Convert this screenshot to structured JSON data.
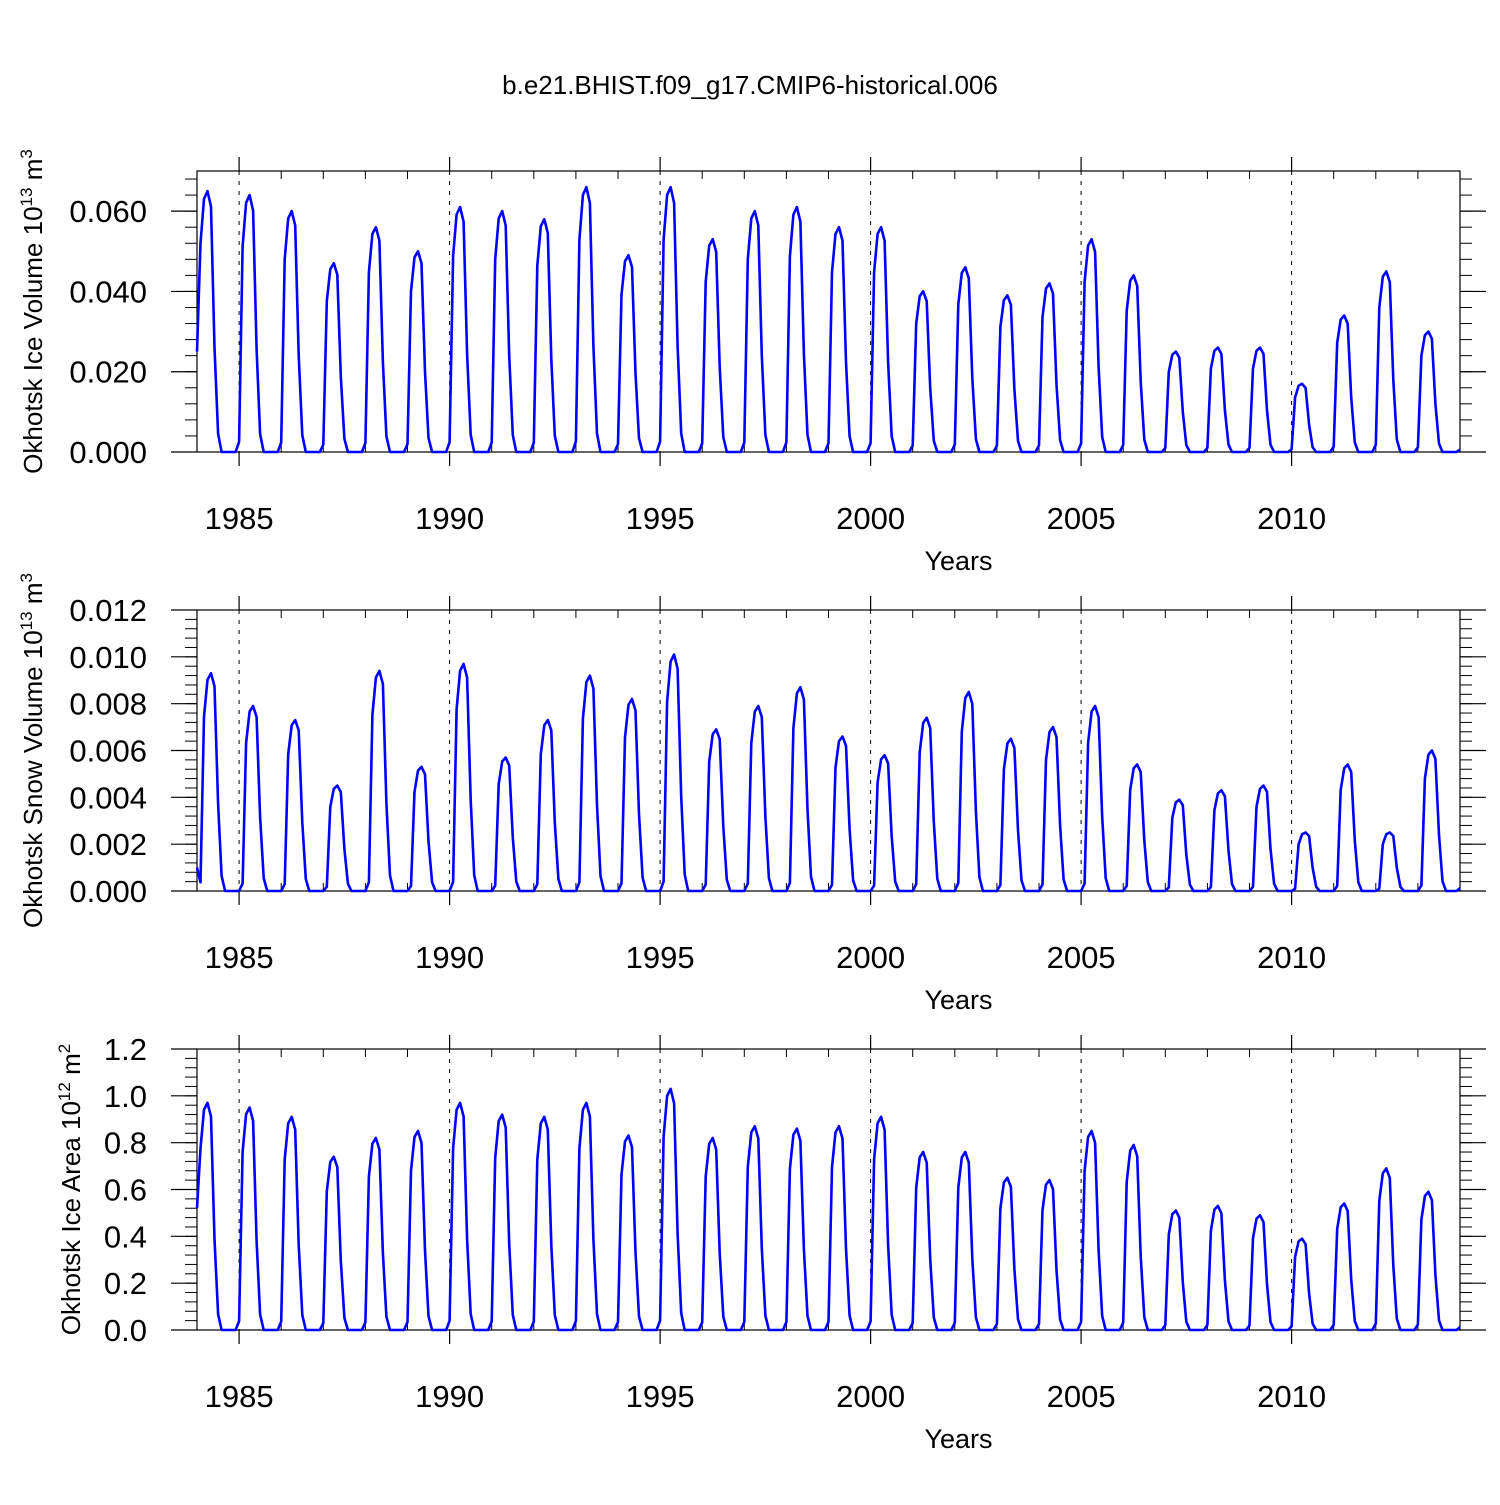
{
  "title": "b.e21.BHIST.f09_g17.CMIP6-historical.006",
  "line_color": "#0000ff",
  "chart_data": [
    {
      "type": "line",
      "ylabel_main": "Okhotsk Ice Volume 10",
      "ylabel_exp": "13",
      "ylabel_unit": " m",
      "ylabel_unit_exp": "3",
      "xlabel": "Years",
      "xlim": [
        1984.0,
        2014.0
      ],
      "ylim": [
        0.0,
        0.07
      ],
      "y_ticks": [
        0.0,
        0.02,
        0.04,
        0.06
      ],
      "y_tick_labels": [
        "0.000",
        "0.020",
        "0.040",
        "0.060"
      ],
      "x_ticks": [
        1985,
        1990,
        1995,
        2000,
        2005,
        2010
      ],
      "x_tick_labels": [
        "1985",
        "1990",
        "1995",
        "2000",
        "2005",
        "2010"
      ],
      "start_year": 1984.0,
      "start_value": 0.025,
      "peak_month": 3,
      "peaks": [
        0.065,
        0.064,
        0.06,
        0.047,
        0.056,
        0.05,
        0.061,
        0.06,
        0.058,
        0.066,
        0.049,
        0.066,
        0.053,
        0.06,
        0.061,
        0.056,
        0.056,
        0.04,
        0.046,
        0.039,
        0.042,
        0.053,
        0.044,
        0.025,
        0.026,
        0.026,
        0.017,
        0.034,
        0.045,
        0.03
      ]
    },
    {
      "type": "line",
      "ylabel_main": "Okhotsk Snow Volume 10",
      "ylabel_exp": "13",
      "ylabel_unit": " m",
      "ylabel_unit_exp": "3",
      "xlabel": "Years",
      "xlim": [
        1984.0,
        2014.0
      ],
      "ylim": [
        0.0,
        0.012
      ],
      "y_ticks": [
        0.0,
        0.002,
        0.004,
        0.006,
        0.008,
        0.01,
        0.012
      ],
      "y_tick_labels": [
        "0.000",
        "0.002",
        "0.004",
        "0.006",
        "0.008",
        "0.010",
        "0.012"
      ],
      "x_ticks": [
        1985,
        1990,
        1995,
        2000,
        2005,
        2010
      ],
      "x_tick_labels": [
        "1985",
        "1990",
        "1995",
        "2000",
        "2005",
        "2010"
      ],
      "start_year": 1984.0,
      "start_value": 0.001,
      "peak_month": 4,
      "peaks": [
        0.0093,
        0.0079,
        0.0073,
        0.0045,
        0.0094,
        0.0053,
        0.0097,
        0.0057,
        0.0073,
        0.0092,
        0.0082,
        0.0101,
        0.0069,
        0.0079,
        0.0087,
        0.0066,
        0.0058,
        0.0074,
        0.0085,
        0.0065,
        0.007,
        0.0079,
        0.0054,
        0.0039,
        0.0043,
        0.0045,
        0.0025,
        0.0054,
        0.0025,
        0.006
      ]
    },
    {
      "type": "line",
      "ylabel_main": "Okhotsk Ice Area 10",
      "ylabel_exp": "12",
      "ylabel_unit": " m",
      "ylabel_unit_exp": "2",
      "xlabel": "Years",
      "xlim": [
        1984.0,
        2014.0
      ],
      "ylim": [
        0.0,
        1.2
      ],
      "y_ticks": [
        0.0,
        0.2,
        0.4,
        0.6,
        0.8,
        1.0,
        1.2
      ],
      "y_tick_labels": [
        "0.0",
        "0.2",
        "0.4",
        "0.6",
        "0.8",
        "1.0",
        "1.2"
      ],
      "x_ticks": [
        1985,
        1990,
        1995,
        2000,
        2005,
        2010
      ],
      "x_tick_labels": [
        "1985",
        "1990",
        "1995",
        "2000",
        "2005",
        "2010"
      ],
      "start_year": 1984.0,
      "start_value": 0.52,
      "peak_month": 3,
      "peaks": [
        0.97,
        0.95,
        0.91,
        0.74,
        0.82,
        0.85,
        0.97,
        0.92,
        0.91,
        0.97,
        0.83,
        1.03,
        0.82,
        0.87,
        0.86,
        0.87,
        0.91,
        0.76,
        0.76,
        0.65,
        0.64,
        0.85,
        0.79,
        0.51,
        0.53,
        0.49,
        0.39,
        0.54,
        0.69,
        0.59
      ]
    }
  ]
}
